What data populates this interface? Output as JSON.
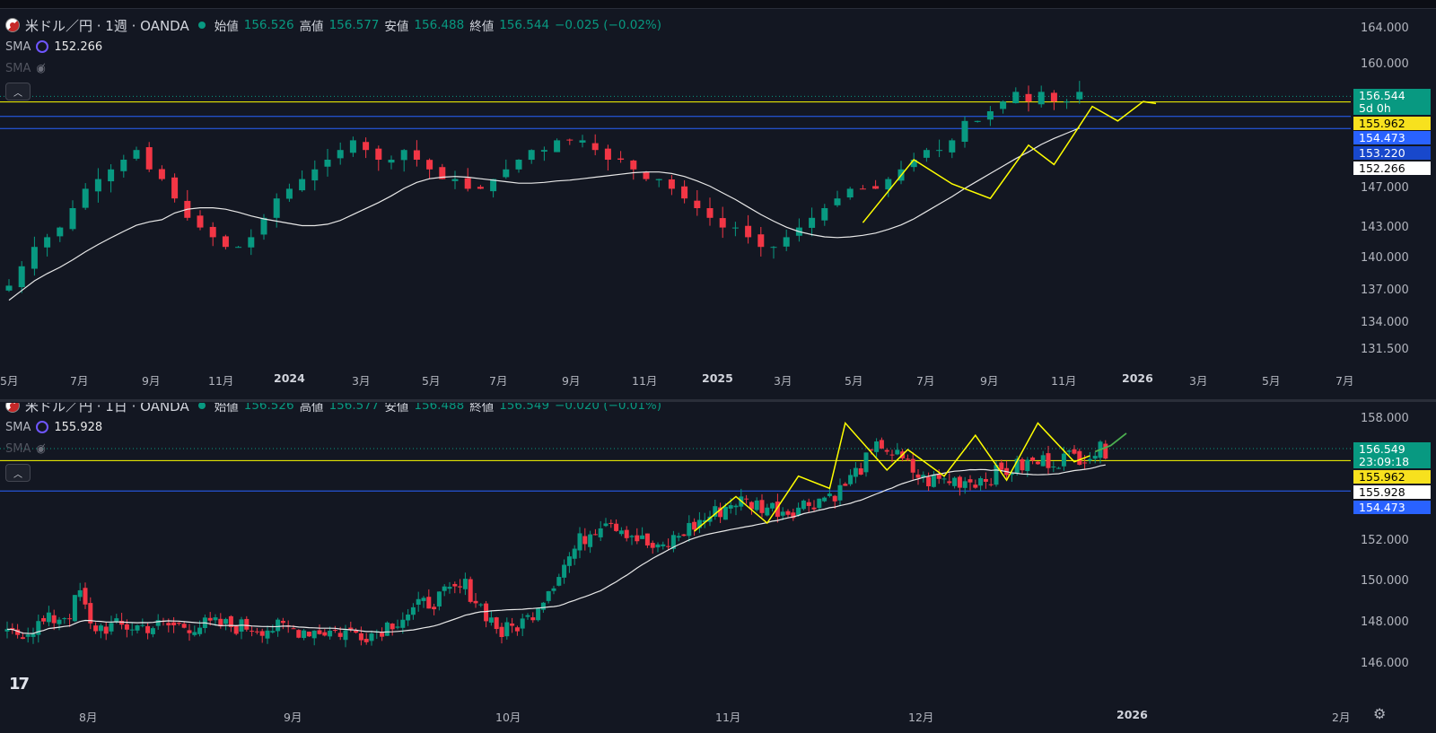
{
  "colors": {
    "up": "#089981",
    "down": "#f23645",
    "bg": "#131722",
    "sma": "#e8e8e8",
    "yellow": "#ffff00",
    "blue": "#2962ff",
    "green_arrow": "#4caf50"
  },
  "top": {
    "symbol": "米ドル／円 · 1週 · OANDA",
    "open_label": "始値",
    "open": "156.526",
    "high_label": "高値",
    "high": "156.577",
    "low_label": "安値",
    "low": "156.488",
    "close_label": "終値",
    "close": "156.544",
    "change": "−0.025 (−0.02%)",
    "sma1_name": "SMA",
    "sma1_value": "152.266",
    "sma2_name": "SMA",
    "y_ticks": [
      "164.000",
      "160.000",
      "147.000",
      "143.000",
      "140.000",
      "137.000",
      "134.000",
      "131.500"
    ],
    "tags": [
      {
        "text": "156.544",
        "bg": "#089981"
      },
      {
        "text": "5d 0h",
        "bg": "#089981"
      },
      {
        "text": "155.962",
        "bg": "#f7e11e",
        "fg": "#000"
      },
      {
        "text": "154.473",
        "bg": "#2962ff"
      },
      {
        "text": "153.220",
        "bg": "#1848cc"
      },
      {
        "text": "152.266",
        "bg": "#ffffff",
        "fg": "#000"
      }
    ],
    "x_labels": [
      {
        "t": "5月"
      },
      {
        "t": "7月"
      },
      {
        "t": "9月"
      },
      {
        "t": "11月"
      },
      {
        "t": "2024",
        "bold": true
      },
      {
        "t": "3月"
      },
      {
        "t": "5月"
      },
      {
        "t": "7月"
      },
      {
        "t": "9月"
      },
      {
        "t": "11月"
      },
      {
        "t": "2025",
        "bold": true
      },
      {
        "t": "3月"
      },
      {
        "t": "5月"
      },
      {
        "t": "7月"
      },
      {
        "t": "9月"
      },
      {
        "t": "11月"
      },
      {
        "t": "2026",
        "bold": true
      },
      {
        "t": "3月"
      },
      {
        "t": "5月"
      },
      {
        "t": "7月"
      }
    ],
    "chart_data": {
      "type": "candlestick",
      "timeframe": "1週",
      "close_series": [
        137,
        139,
        141,
        142,
        143,
        145,
        147,
        148,
        149,
        150,
        151,
        149,
        148,
        146,
        144,
        143,
        142,
        141,
        141,
        142,
        144,
        146,
        147,
        148,
        149,
        150,
        151,
        152,
        151,
        150,
        150,
        151,
        150,
        149,
        148,
        148,
        147,
        147,
        148,
        149,
        150,
        151,
        151,
        152,
        152,
        152,
        151,
        150,
        150,
        149,
        148,
        148,
        147,
        146,
        145,
        144,
        143,
        143,
        142,
        141,
        141,
        142,
        143,
        144,
        145,
        146,
        147,
        147,
        147,
        148,
        149,
        150,
        151,
        151,
        152,
        154,
        154,
        155,
        156,
        157,
        156,
        157,
        156,
        156,
        157
      ],
      "levels": [
        155.962,
        154.473,
        153.22
      ],
      "sma_last": 152.266
    }
  },
  "bottom": {
    "symbol": "米ドル／円 · 1日 · OANDA",
    "open_label": "始値",
    "open": "156.526",
    "high_label": "高値",
    "high": "156.577",
    "low_label": "安値",
    "low": "156.488",
    "close_label": "終値",
    "close": "156.549",
    "change": "−0.020 (−0.01%)",
    "sma1_name": "SMA",
    "sma1_value": "155.928",
    "sma2_name": "SMA",
    "y_ticks": [
      "158.000",
      "152.000",
      "150.000",
      "148.000",
      "146.000"
    ],
    "tags": [
      {
        "text": "156.549",
        "bg": "#089981"
      },
      {
        "text": "23:09:18",
        "bg": "#089981"
      },
      {
        "text": "155.962",
        "bg": "#f7e11e",
        "fg": "#000"
      },
      {
        "text": "155.928",
        "bg": "#ffffff",
        "fg": "#000"
      },
      {
        "text": "154.473",
        "bg": "#2962ff"
      }
    ],
    "x_labels": [
      {
        "t": "8月"
      },
      {
        "t": "9月"
      },
      {
        "t": "10月"
      },
      {
        "t": "11月"
      },
      {
        "t": "12月"
      },
      {
        "t": "2026",
        "bold": true
      },
      {
        "t": "2月"
      }
    ],
    "chart_data": {
      "type": "candlestick",
      "timeframe": "1日",
      "levels": [
        155.962,
        154.473
      ],
      "sma_last": 155.928
    }
  },
  "logo": "17",
  "icons": [
    "flag-icon",
    "cycle-icon",
    "eye-off-icon",
    "collapse-icon",
    "settings-icon"
  ]
}
